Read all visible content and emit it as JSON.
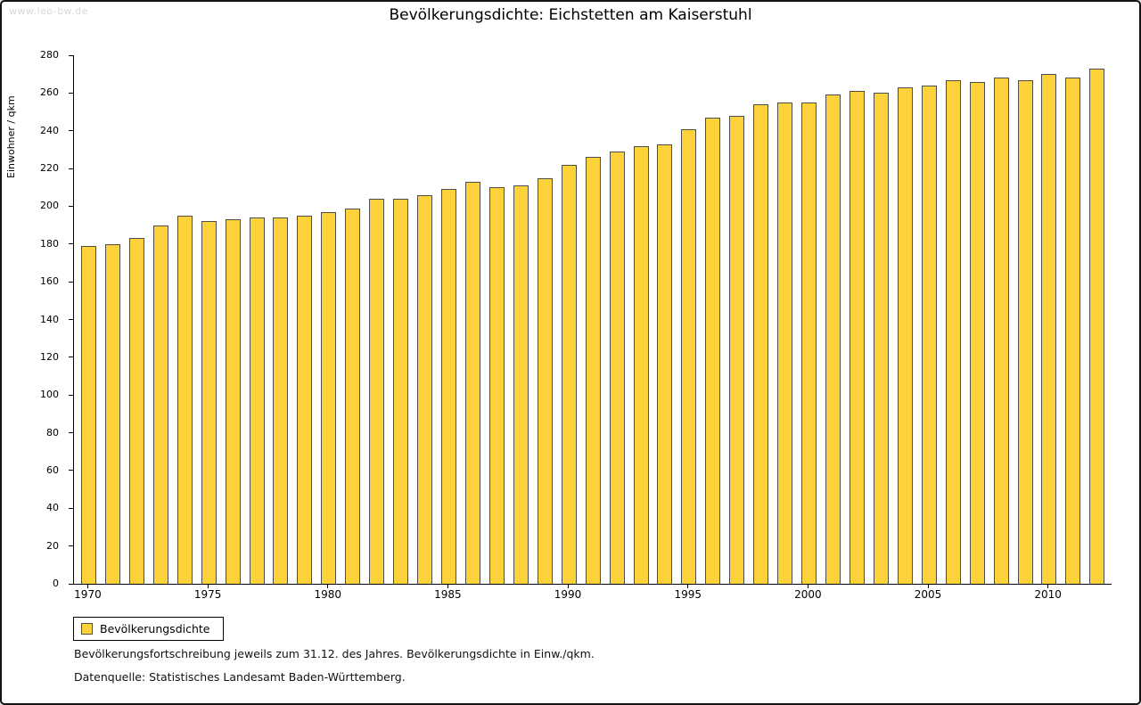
{
  "watermark": "www.leo-bw.de",
  "chart_data": {
    "type": "bar",
    "title": "Bevölkerungsdichte: Eichstetten am Kaiserstuhl",
    "ylabel": "Einwohner / qkm",
    "xlabel": "",
    "ylim": [
      0,
      280
    ],
    "ytick_step": 20,
    "grid": false,
    "legend_position": "bottom-left",
    "bar_color": "#fbd23a",
    "bar_border_color": "#4d4d4d",
    "xticks": [
      1970,
      1975,
      1980,
      1985,
      1990,
      1995,
      2000,
      2005,
      2010
    ],
    "categories": [
      1970,
      1971,
      1972,
      1973,
      1974,
      1975,
      1976,
      1977,
      1978,
      1979,
      1980,
      1981,
      1982,
      1983,
      1984,
      1985,
      1986,
      1987,
      1988,
      1989,
      1990,
      1991,
      1992,
      1993,
      1994,
      1995,
      1996,
      1997,
      1998,
      1999,
      2000,
      2001,
      2002,
      2003,
      2004,
      2005,
      2006,
      2007,
      2008,
      2009,
      2010,
      2011,
      2012
    ],
    "values": [
      179,
      180,
      183,
      190,
      195,
      192,
      193,
      194,
      194,
      195,
      197,
      199,
      204,
      204,
      206,
      209,
      213,
      210,
      211,
      215,
      222,
      226,
      229,
      232,
      233,
      241,
      247,
      248,
      254,
      255,
      255,
      259,
      261,
      260,
      263,
      264,
      267,
      266,
      268,
      267,
      270,
      268,
      273
    ]
  },
  "legend": {
    "label": "Bevölkerungsdichte"
  },
  "footnotes": {
    "line1": "Bevölkerungsfortschreibung jeweils zum 31.12. des Jahres. Bevölkerungsdichte in Einw./qkm.",
    "line2": "Datenquelle: Statistisches Landesamt Baden-Württemberg."
  }
}
